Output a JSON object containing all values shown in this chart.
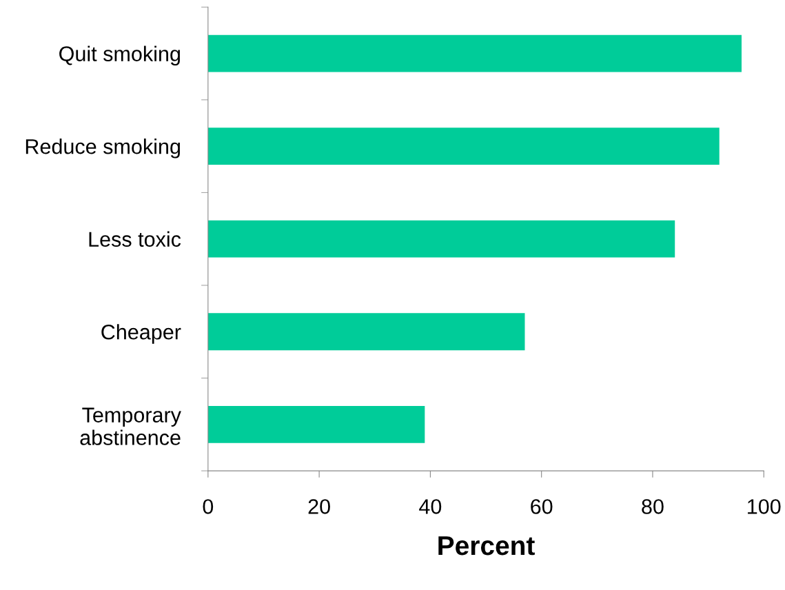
{
  "chart_data": {
    "type": "bar",
    "orientation": "horizontal",
    "categories": [
      "Quit smoking",
      "Reduce smoking",
      "Less toxic",
      "Cheaper",
      "Temporary\nabstinence"
    ],
    "values": [
      96,
      92,
      84,
      57,
      39
    ],
    "color": "#00cc99",
    "xlim": [
      0,
      100
    ],
    "xticks": [
      0,
      20,
      40,
      60,
      80,
      100
    ],
    "xlabel": "Percent",
    "grid": false,
    "legend": false
  }
}
